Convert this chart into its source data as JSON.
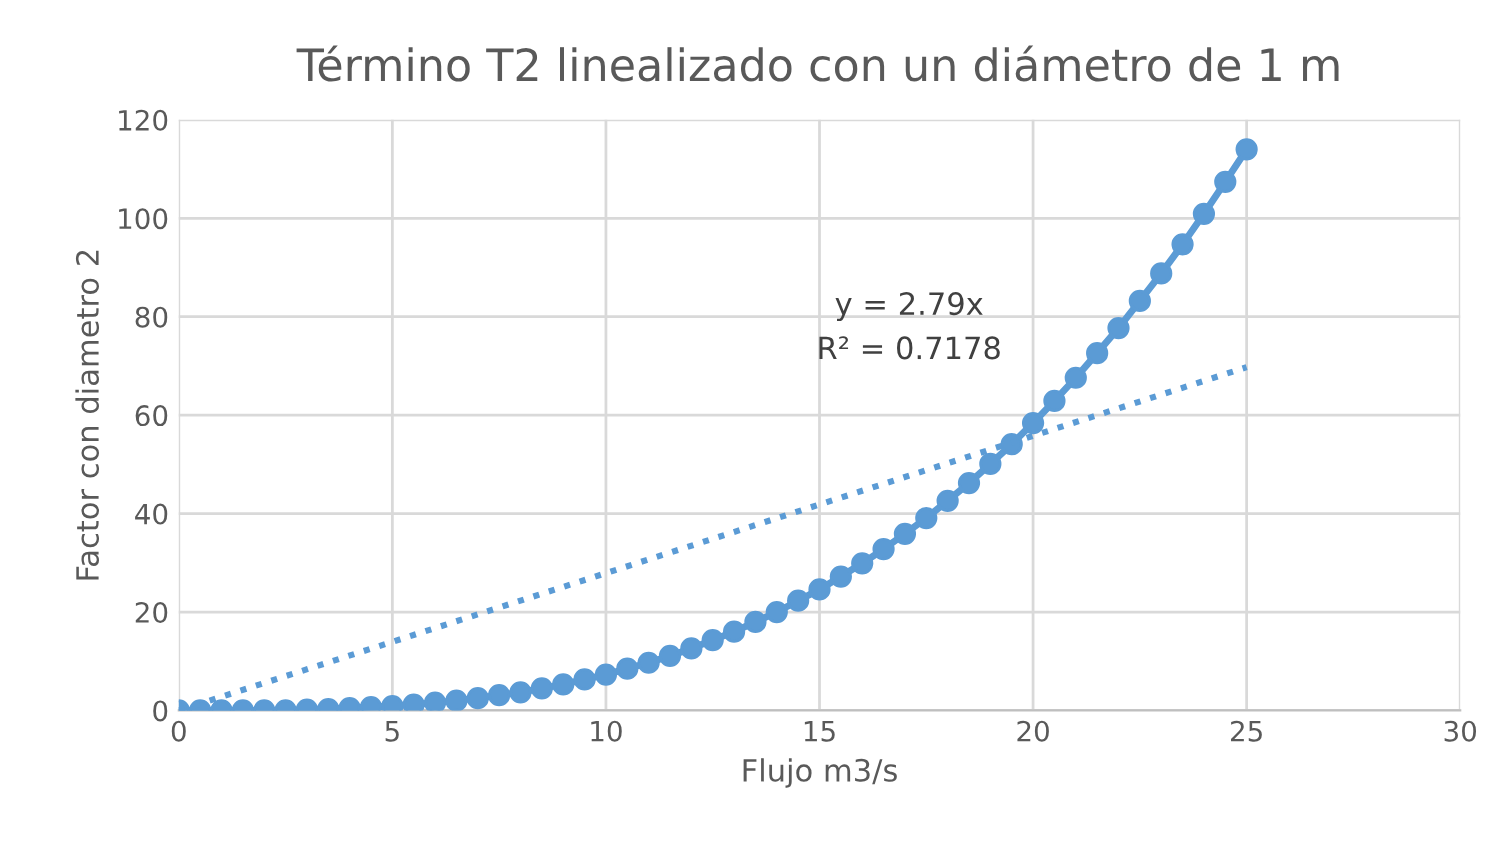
{
  "chart_data": {
    "type": "line",
    "title": "Término T2 linealizado con un diámetro de 1 m",
    "xlabel": "Flujo m3/s",
    "ylabel": "Factor con diametro 2",
    "xlim": [
      0,
      30
    ],
    "xticks": [
      0,
      5,
      10,
      15,
      20,
      25,
      30
    ],
    "ylim": [
      0,
      120
    ],
    "yticks": [
      0,
      20,
      40,
      60,
      80,
      100,
      120
    ],
    "grid": true,
    "legend": false,
    "annotations": [
      "y = 2.79x",
      "R² = 0.7178"
    ],
    "series": [
      {
        "color": "#5b9bd5",
        "marker": "circle",
        "line_style": "solid",
        "x": [
          0,
          0.5,
          1,
          1.5,
          2,
          2.5,
          3,
          3.5,
          4,
          4.5,
          5,
          5.5,
          6,
          6.5,
          7,
          7.5,
          8,
          8.5,
          9,
          9.5,
          10,
          10.5,
          11,
          11.5,
          12,
          12.5,
          13,
          13.5,
          14,
          14.5,
          15,
          15.5,
          16,
          16.5,
          17,
          17.5,
          18,
          18.5,
          19,
          19.5,
          20,
          20.5,
          21,
          21.5,
          22,
          22.5,
          23,
          23.5,
          24,
          24.5,
          25
        ],
        "values": [
          0,
          0,
          0,
          0,
          0,
          0,
          0.2,
          0.3,
          0.5,
          0.7,
          0.9,
          1.2,
          1.6,
          2,
          2.5,
          3.1,
          3.7,
          4.5,
          5.3,
          6.3,
          7.3,
          8.5,
          9.7,
          11.1,
          12.6,
          14.3,
          16,
          18,
          20,
          22.3,
          24.6,
          27.2,
          29.9,
          32.8,
          35.9,
          39.1,
          42.6,
          46.2,
          50.1,
          54.1,
          58.4,
          62.9,
          67.6,
          72.6,
          77.7,
          83.2,
          88.8,
          94.7,
          100.9,
          107.4,
          114
        ]
      },
      {
        "color": "#5b9bd5",
        "marker": "none",
        "line_style": "dotted",
        "x": [
          0,
          25
        ],
        "values": [
          0,
          69.75
        ]
      }
    ]
  }
}
